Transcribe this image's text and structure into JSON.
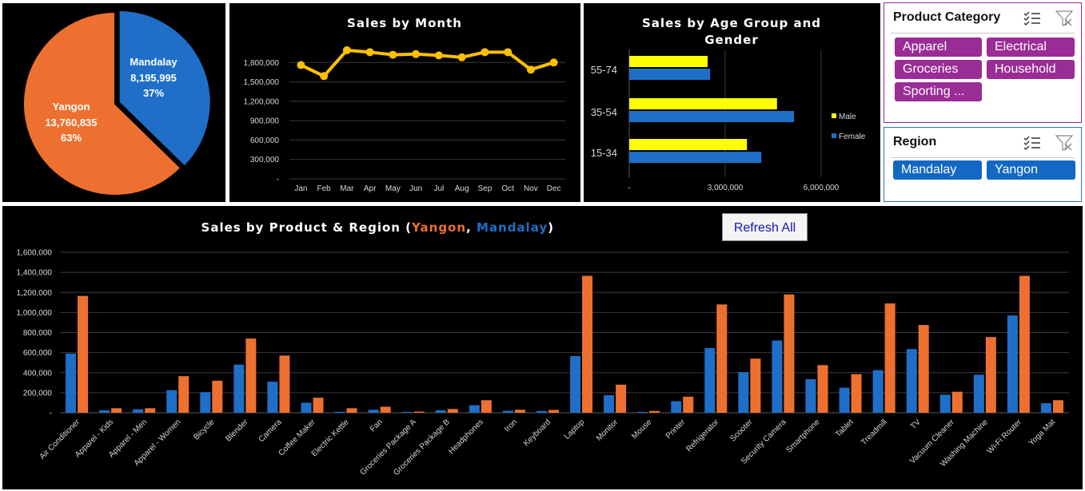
{
  "colors": {
    "yangon": "#ee7030",
    "mandalay": "#1f6fc8",
    "line": "#ffc000",
    "male": "#ffff00",
    "female": "#1f6fc8",
    "slicer_purple": "#9a2c96",
    "slicer_blue": "#1268c4"
  },
  "pie": {
    "slices": [
      {
        "name": "Mandalay",
        "value_label": "8,195,995",
        "pct_label": "37%",
        "value": 8195995
      },
      {
        "name": "Yangon",
        "value_label": "13,760,835",
        "pct_label": "63%",
        "value": 13760835
      }
    ]
  },
  "month_chart": {
    "title": "Sales by Month",
    "y_ticks": [
      "-",
      "300,000",
      "600,000",
      "900,000",
      "1,200,000",
      "1,500,000",
      "1,800,000"
    ],
    "categories": [
      "Jan",
      "Feb",
      "Mar",
      "Apr",
      "May",
      "Jun",
      "Jul",
      "Aug",
      "Sep",
      "Oct",
      "Nov",
      "Dec"
    ],
    "values": [
      1760000,
      1590000,
      1990000,
      1960000,
      1920000,
      1930000,
      1910000,
      1880000,
      1960000,
      1960000,
      1690000,
      1800000
    ]
  },
  "age_chart": {
    "title_line1": "Sales by Age Group and",
    "title_line2": "Gender",
    "categories": [
      "55-74",
      "35-54",
      "15-34"
    ],
    "male": [
      2450000,
      4620000,
      3680000
    ],
    "female": [
      2530000,
      5150000,
      4130000
    ],
    "x_ticks": [
      "-",
      "3,000,000",
      "6,000,000"
    ],
    "legend_male": "Male",
    "legend_female": "Female"
  },
  "product_slicer": {
    "title": "Product Category",
    "items": [
      "Apparel",
      "Electrical",
      "Groceries",
      "Household",
      "Sporting ..."
    ]
  },
  "region_slicer": {
    "title": "Region",
    "items": [
      "Mandalay",
      "Yangon"
    ]
  },
  "product_chart": {
    "title_prefix": "Sales by Product & Region (",
    "title_yangon": "Yangon",
    "title_comma": ", ",
    "title_mandalay": "Mandalay",
    "title_suffix": ")",
    "refresh_label": "Refresh All",
    "y_ticks": [
      "-",
      "200,000",
      "400,000",
      "600,000",
      "800,000",
      "1,000,000",
      "1,200,000",
      "1,400,000",
      "1,600,000"
    ],
    "categories": [
      "Air Conditioner",
      "Apparel - Kids",
      "Apparel - Men",
      "Apparel - Women",
      "Bicycle",
      "Blender",
      "Camera",
      "Coffee Maker",
      "Electric Kettle",
      "Fan",
      "Groceries Package A",
      "Groceries Package B",
      "Headphones",
      "Iron",
      "Keyboard",
      "Laptop",
      "Monitor",
      "Mouse",
      "Printer",
      "Refrigerator",
      "Scooter",
      "Security Camera",
      "Smartphone",
      "Tablet",
      "Treadmill",
      "TV",
      "Vacuum Cleaner",
      "Washing Machine",
      "Wi-Fi Router",
      "Yoga Mat"
    ],
    "mandalay": [
      590000,
      25000,
      35000,
      225000,
      205000,
      480000,
      310000,
      100000,
      10000,
      30000,
      8000,
      25000,
      75000,
      20000,
      18000,
      565000,
      175000,
      8000,
      115000,
      645000,
      405000,
      720000,
      335000,
      250000,
      425000,
      635000,
      180000,
      380000,
      970000,
      95000
    ],
    "yangon": [
      1165000,
      45000,
      45000,
      365000,
      320000,
      740000,
      570000,
      150000,
      45000,
      60000,
      12000,
      38000,
      125000,
      30000,
      28000,
      1365000,
      280000,
      18000,
      160000,
      1080000,
      540000,
      1180000,
      475000,
      385000,
      1090000,
      875000,
      210000,
      755000,
      1365000,
      125000
    ]
  }
}
